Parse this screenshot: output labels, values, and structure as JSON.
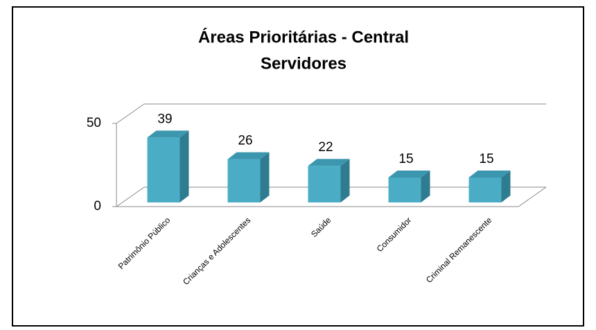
{
  "chart_data": {
    "type": "bar3d",
    "title": [
      "Áreas Prioritárias - Central",
      "Servidores"
    ],
    "categories": [
      "Patrimônio Público",
      "Crianças e Adolescentes",
      "Saúde",
      "Consumidor",
      "Criminal Remanescente"
    ],
    "values": [
      39,
      26,
      22,
      15,
      15
    ],
    "color": "#4bacc6",
    "ylim": [
      0,
      50
    ],
    "yticks": [
      0,
      50
    ],
    "grid": true
  }
}
